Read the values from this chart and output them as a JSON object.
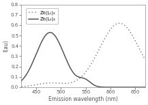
{
  "title": "",
  "xlabel": "Emission wavelength (nm)",
  "ylabel": "I(au)",
  "xlim": [
    420,
    670
  ],
  "ylim": [
    0.0,
    0.8
  ],
  "yticks": [
    0.0,
    0.1,
    0.2,
    0.3,
    0.4,
    0.5,
    0.6,
    0.7,
    0.8
  ],
  "xticks": [
    450,
    500,
    550,
    600,
    650
  ],
  "legend1_label": "Zn(L₁)₂",
  "legend2_label": "Zn(L₂)₂",
  "curve1_color": "#888888",
  "curve2_color": "#555555",
  "background_color": "#ffffff"
}
